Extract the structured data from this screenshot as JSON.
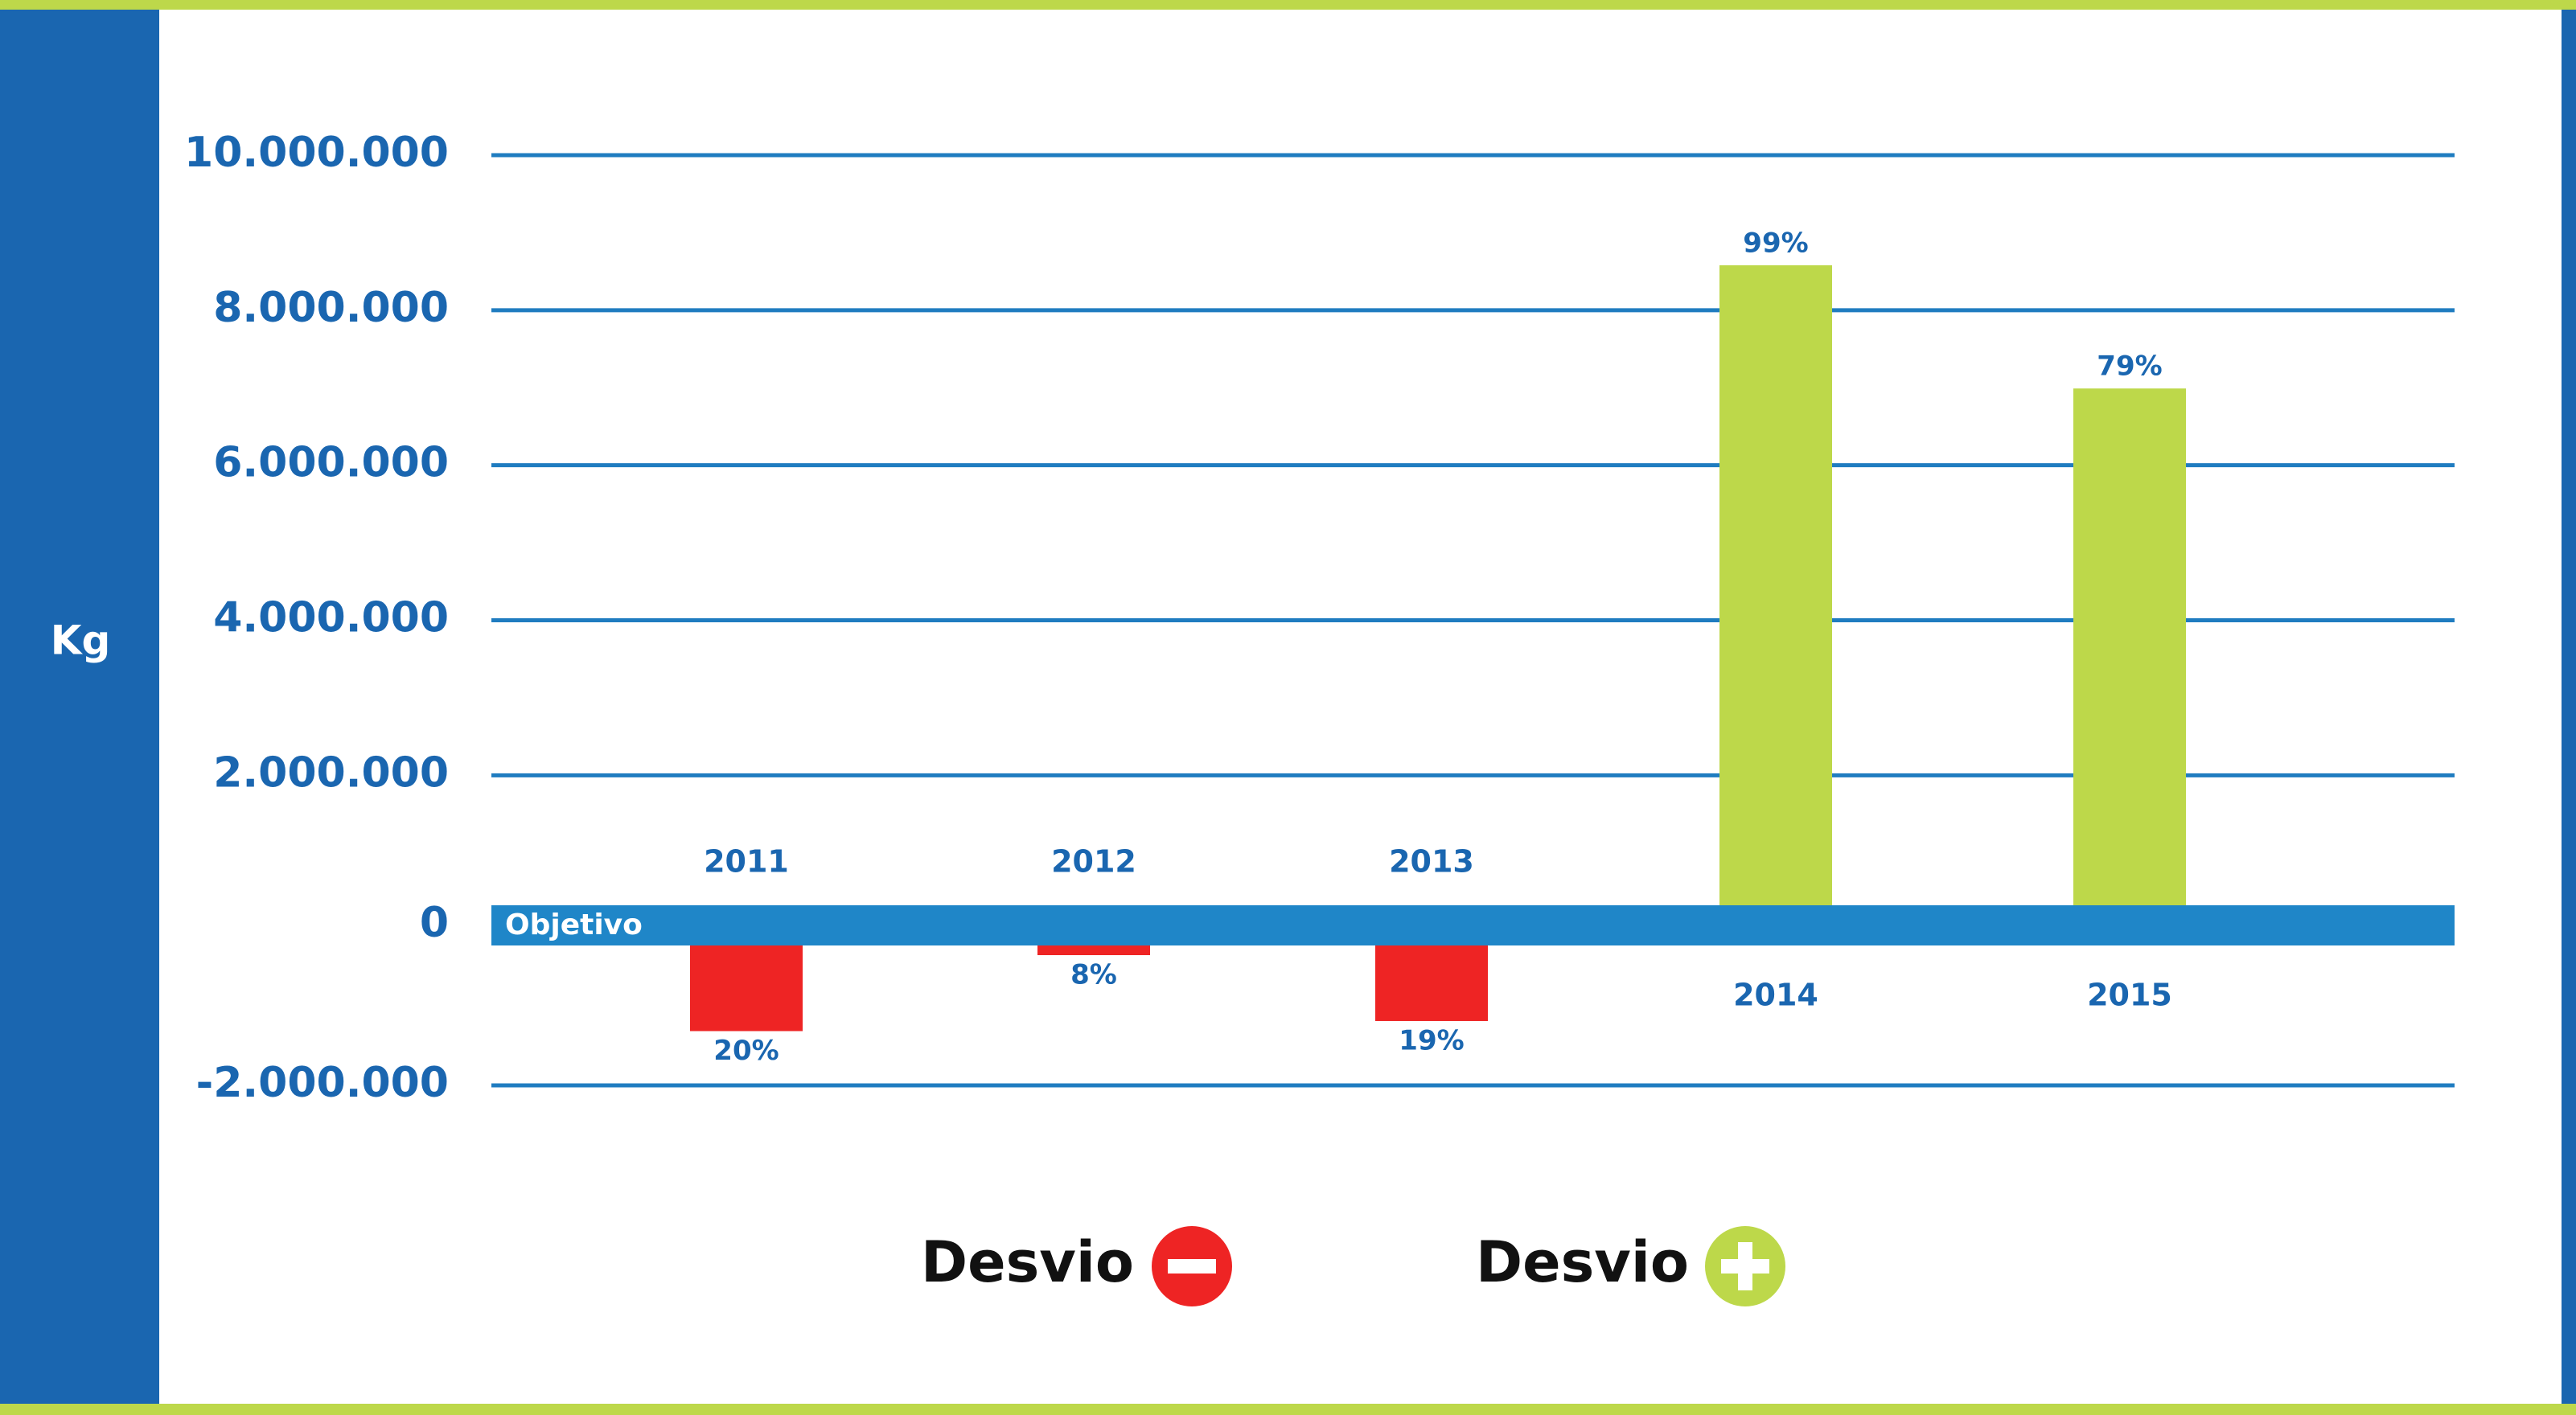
{
  "colors": {
    "frame_green": "#bdd84a",
    "side_blue": "#1a66b0",
    "axis_blue": "#1f86c8",
    "grid_blue": "#1f7cc0",
    "negative_red": "#ee2424",
    "positive_green": "#bdd84a",
    "text_blue": "#1a66b0"
  },
  "chart_data": {
    "type": "bar",
    "ylabel": "Kg",
    "ylim": [
      -2000000,
      10000000
    ],
    "yticks": [
      10000000,
      8000000,
      6000000,
      4000000,
      2000000,
      0,
      -2000000
    ],
    "ytick_labels": [
      "10.000.000",
      "8.000.000",
      "6.000.000",
      "4.000.000",
      "2.000.000",
      "0",
      "-2.000.000"
    ],
    "baseline_label": "Objetivo",
    "categories": [
      "2011",
      "2012",
      "2013",
      "2014",
      "2015"
    ],
    "values": [
      -1300000,
      -320000,
      -1170000,
      8580000,
      6990000
    ],
    "data_labels": [
      "20%",
      "8%",
      "19%",
      "99%",
      "79%"
    ],
    "grid": true,
    "legend": [
      {
        "label": "Desvio",
        "symbol": "minus",
        "color": "#ee2424"
      },
      {
        "label": "Desvio",
        "symbol": "plus",
        "color": "#bdd84a"
      }
    ]
  }
}
